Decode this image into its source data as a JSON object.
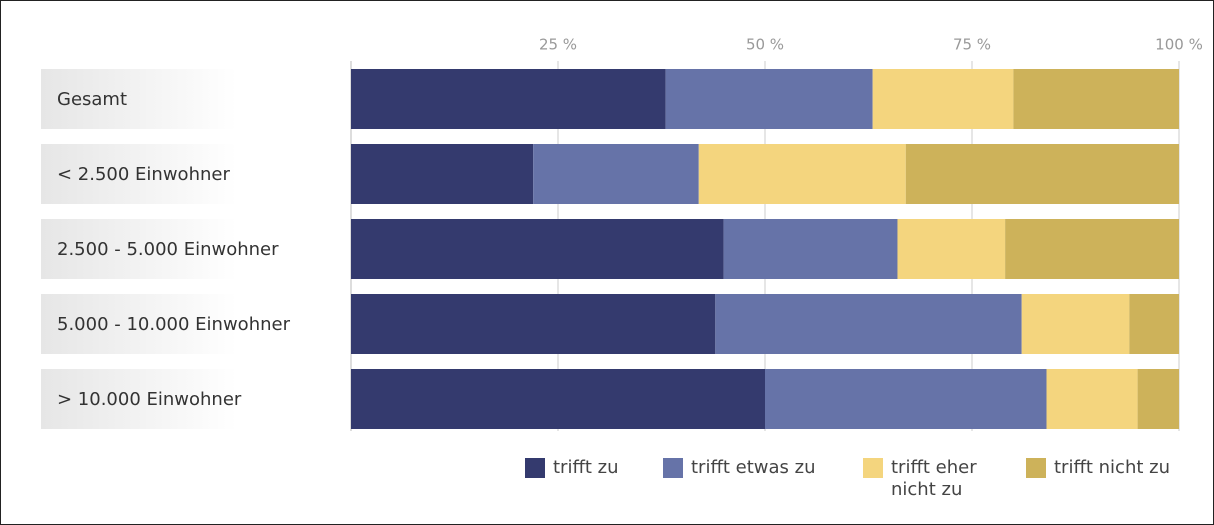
{
  "chart_data": {
    "type": "stacked_bar",
    "orientation": "horizontal",
    "categories": [
      "Gesamt",
      "< 2.500 Einwohner",
      "2.500 - 5.000 Einwohner",
      "5.000 - 10.000 Einwohner",
      "> 10.000 Einwohner"
    ],
    "series": [
      {
        "name": "trifft zu",
        "color": "#343a6e",
        "values": [
          38,
          22,
          45,
          44,
          50
        ]
      },
      {
        "name": "trifft etwas zu",
        "color": "#6673a8",
        "values": [
          25,
          20,
          21,
          37,
          34
        ]
      },
      {
        "name": "trifft eher nicht zu",
        "color": "#f4d57e",
        "values": [
          17,
          25,
          13,
          13,
          11
        ]
      },
      {
        "name": "trifft nicht zu",
        "color": "#cdb25a",
        "values": [
          20,
          33,
          21,
          6,
          5
        ]
      }
    ],
    "xlim": [
      0,
      100
    ],
    "xticks": [
      {
        "value": 25,
        "label": "25 %"
      },
      {
        "value": 50,
        "label": "50 %"
      },
      {
        "value": 75,
        "label": "75 %"
      },
      {
        "value": 100,
        "label": "100 %"
      }
    ],
    "grid": true,
    "legend": "bottom-right"
  }
}
